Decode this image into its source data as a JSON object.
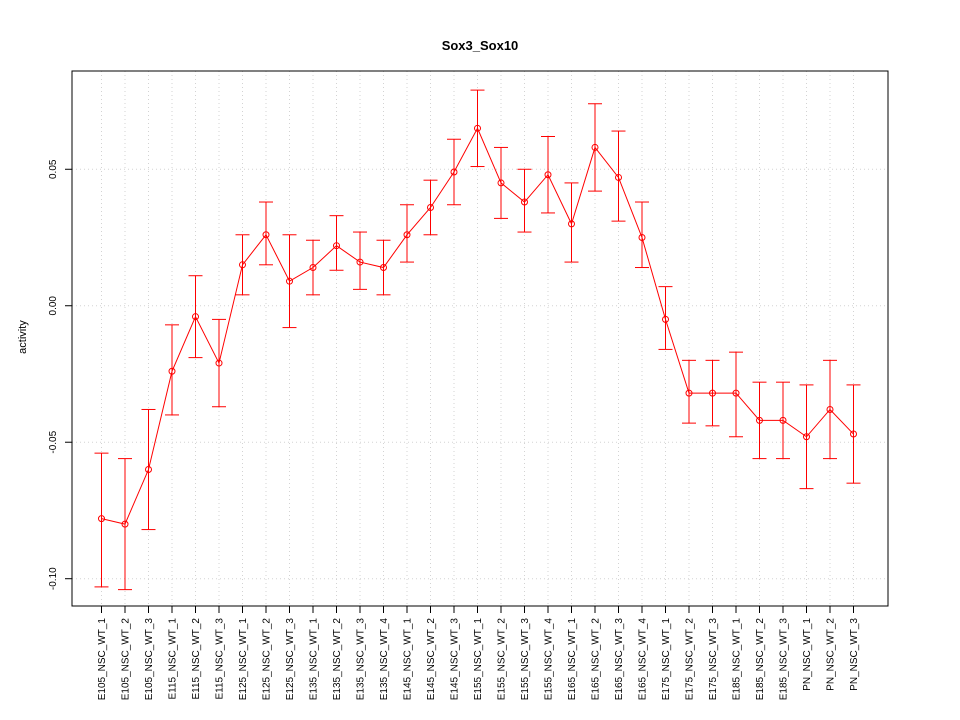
{
  "chart_data": {
    "type": "line",
    "title": "Sox3_Sox10",
    "xlabel": "",
    "ylabel": "activity",
    "ylim": [
      -0.11,
      0.086
    ],
    "yticks": [
      -0.1,
      -0.05,
      0.0,
      0.05
    ],
    "ytick_labels": [
      "-0.10",
      "-0.05",
      "0.00",
      "0.05"
    ],
    "grid": true,
    "color": "#ff0000",
    "categories": [
      "E105_NSC_WT_1",
      "E105_NSC_WT_2",
      "E105_NSC_WT_3",
      "E115_NSC_WT_1",
      "E115_NSC_WT_2",
      "E115_NSC_WT_3",
      "E125_NSC_WT_1",
      "E125_NSC_WT_2",
      "E125_NSC_WT_3",
      "E135_NSC_WT_1",
      "E135_NSC_WT_2",
      "E135_NSC_WT_3",
      "E135_NSC_WT_4",
      "E145_NSC_WT_1",
      "E145_NSC_WT_2",
      "E145_NSC_WT_3",
      "E155_NSC_WT_1",
      "E155_NSC_WT_2",
      "E155_NSC_WT_3",
      "E155_NSC_WT_4",
      "E165_NSC_WT_1",
      "E165_NSC_WT_2",
      "E165_NSC_WT_3",
      "E165_NSC_WT_4",
      "E175_NSC_WT_1",
      "E175_NSC_WT_2",
      "E175_NSC_WT_3",
      "E185_NSC_WT_1",
      "E185_NSC_WT_2",
      "E185_NSC_WT_3",
      "PN_NSC_WT_1",
      "PN_NSC_WT_2",
      "PN_NSC_WT_3"
    ],
    "values": [
      -0.078,
      -0.08,
      -0.06,
      -0.024,
      -0.004,
      -0.021,
      0.015,
      0.026,
      0.009,
      0.014,
      0.022,
      0.016,
      0.014,
      0.026,
      0.036,
      0.049,
      0.065,
      0.045,
      0.038,
      0.048,
      0.03,
      0.058,
      0.047,
      0.025,
      -0.005,
      -0.032,
      -0.032,
      -0.032,
      -0.042,
      -0.042,
      -0.048,
      -0.038,
      -0.047
    ],
    "error_upper": [
      -0.054,
      -0.056,
      -0.038,
      -0.007,
      0.011,
      -0.005,
      0.026,
      0.038,
      0.026,
      0.024,
      0.033,
      0.027,
      0.024,
      0.037,
      0.046,
      0.061,
      0.079,
      0.058,
      0.05,
      0.062,
      0.045,
      0.074,
      0.064,
      0.038,
      0.007,
      -0.02,
      -0.02,
      -0.017,
      -0.028,
      -0.028,
      -0.029,
      -0.02,
      -0.029
    ],
    "error_lower": [
      -0.103,
      -0.104,
      -0.082,
      -0.04,
      -0.019,
      -0.037,
      0.004,
      0.015,
      -0.008,
      0.004,
      0.013,
      0.006,
      0.004,
      0.016,
      0.026,
      0.037,
      0.051,
      0.032,
      0.027,
      0.034,
      0.016,
      0.042,
      0.031,
      0.014,
      -0.016,
      -0.043,
      -0.044,
      -0.048,
      -0.056,
      -0.056,
      -0.067,
      -0.056,
      -0.065
    ]
  }
}
